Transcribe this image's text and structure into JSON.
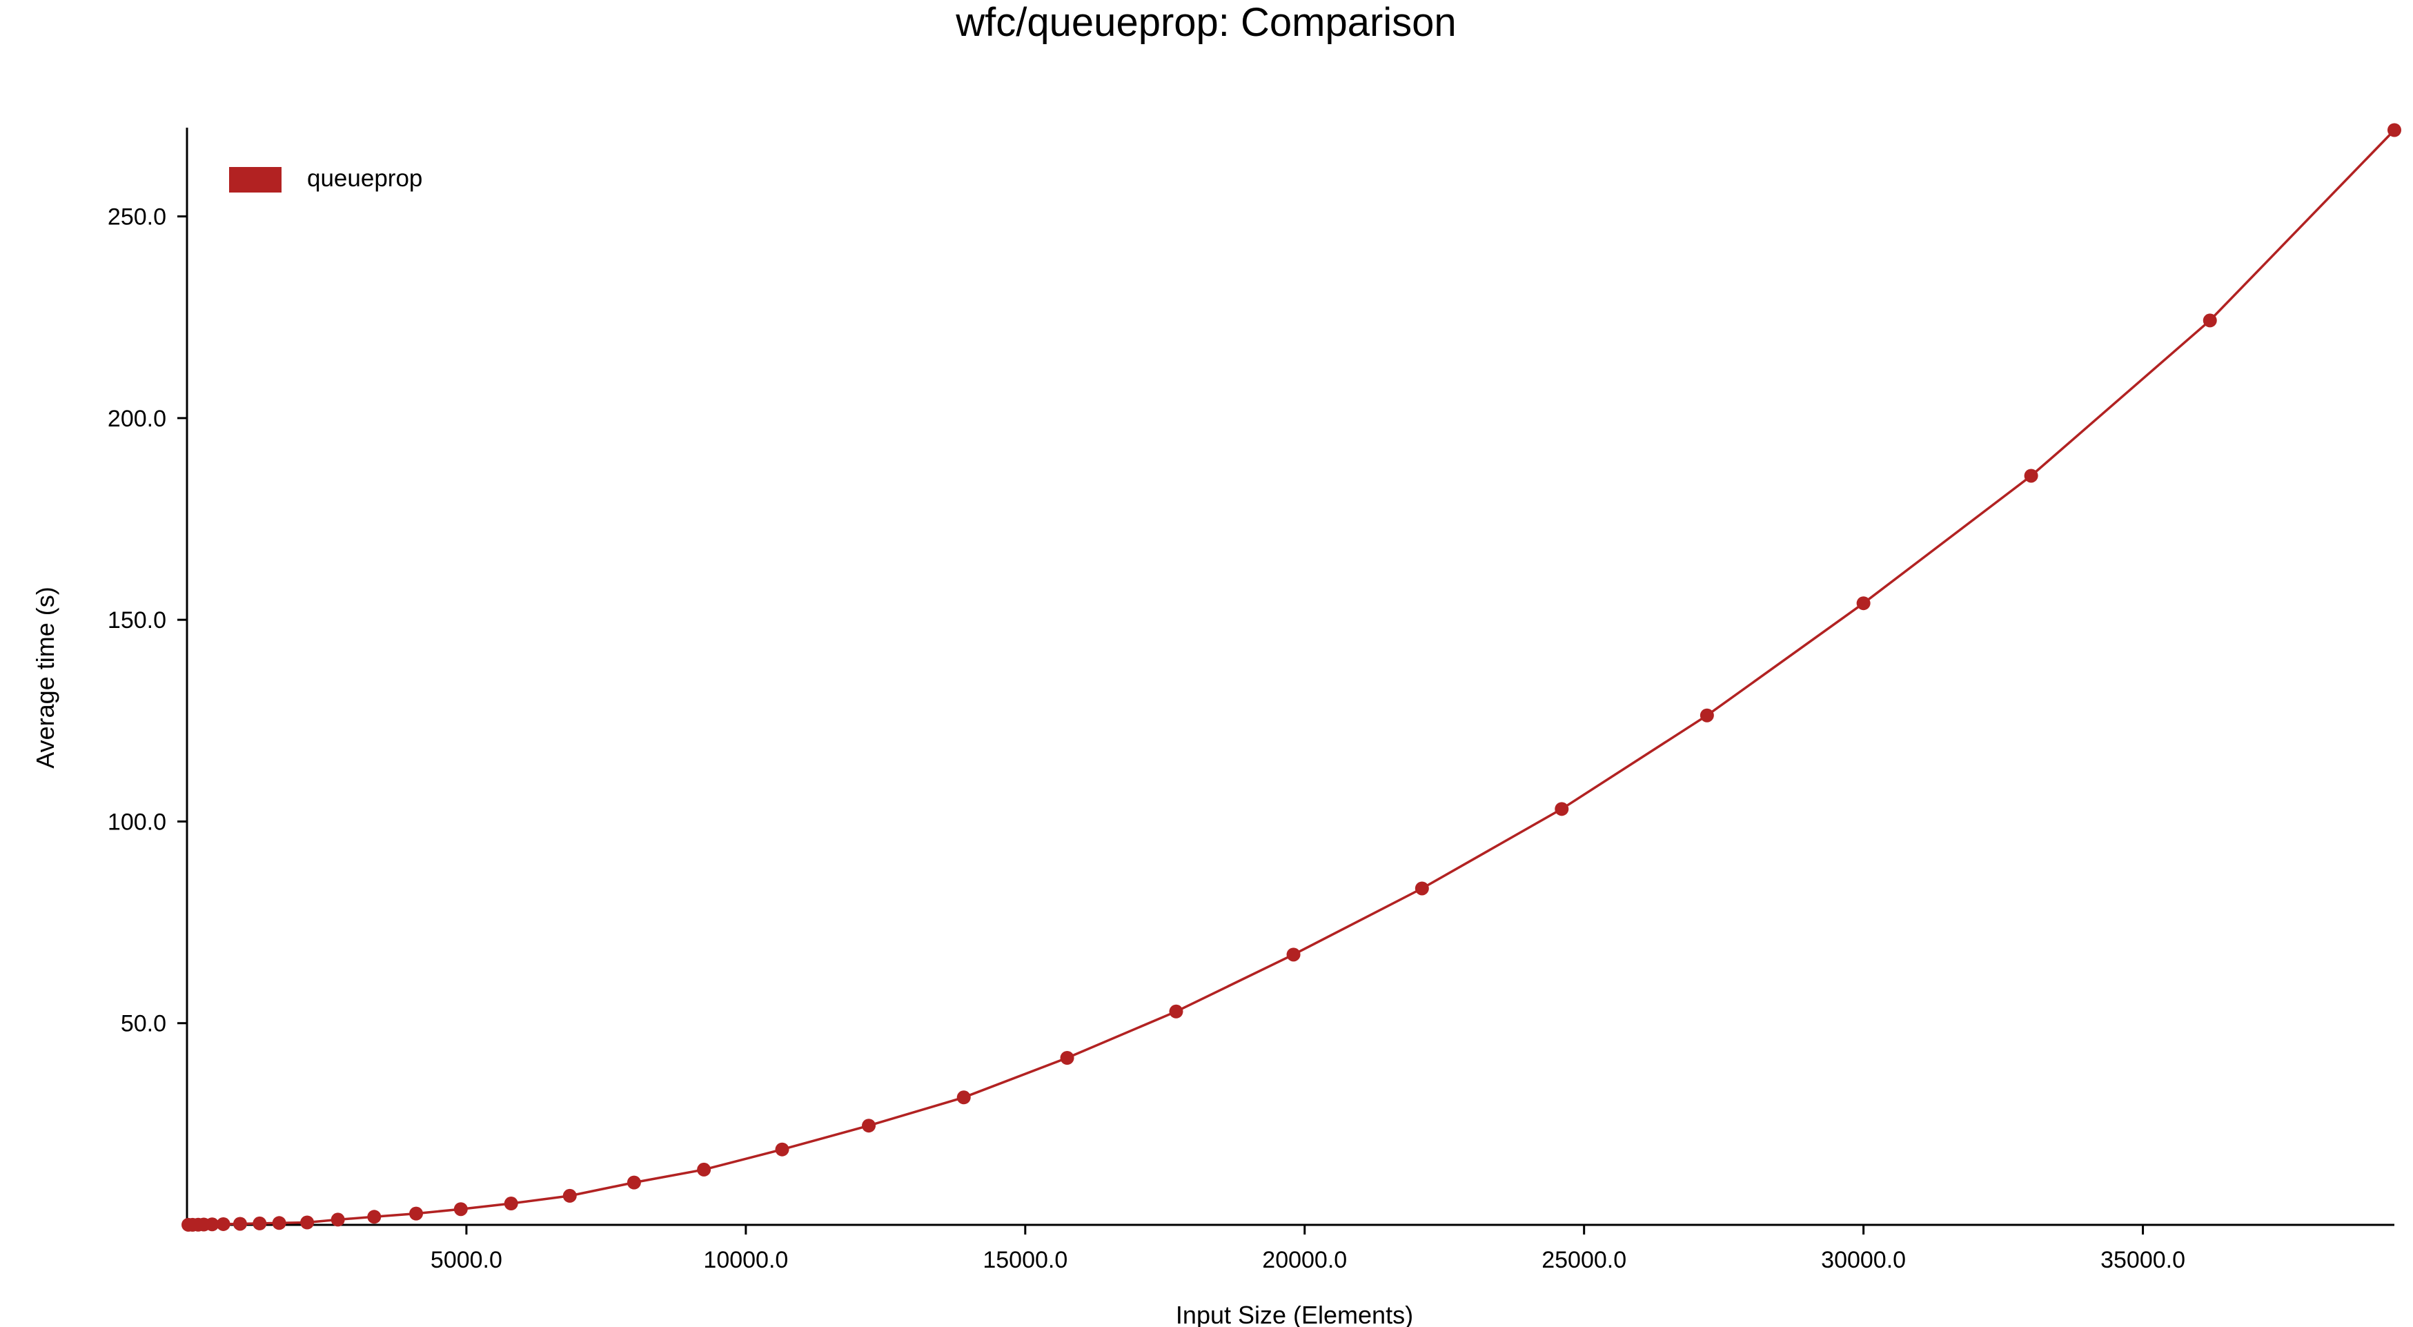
{
  "chart_data": {
    "type": "line",
    "title": "wfc/queueprop: Comparison",
    "xlabel": "Input Size (Elements)",
    "ylabel": "Average time (s)",
    "xlim": [
      0,
      39500
    ],
    "ylim": [
      0,
      272
    ],
    "xticks": [
      5000,
      10000,
      15000,
      20000,
      25000,
      30000,
      35000
    ],
    "xtick_labels": [
      "5000.0",
      "10000.0",
      "15000.0",
      "20000.0",
      "25000.0",
      "30000.0",
      "35000.0"
    ],
    "yticks": [
      50,
      100,
      150,
      200,
      250
    ],
    "ytick_labels": [
      "50.0",
      "100.0",
      "150.0",
      "200.0",
      "250.0"
    ],
    "grid": false,
    "legend_position": "top-left",
    "series": [
      {
        "name": "queueprop",
        "color": "#b22222",
        "x": [
          25,
          100,
          200,
          300,
          450,
          650,
          950,
          1300,
          1650,
          2150,
          2700,
          3350,
          4100,
          4900,
          5800,
          6850,
          8000,
          9250,
          10650,
          12200,
          13900,
          15750,
          17700,
          19800,
          22100,
          24600,
          27200,
          30000,
          33000,
          36200,
          39500
        ],
        "y": [
          0.02,
          0.03,
          0.05,
          0.08,
          0.12,
          0.18,
          0.26,
          0.36,
          0.46,
          0.6,
          1.3,
          2.0,
          2.8,
          3.9,
          5.3,
          7.2,
          10.5,
          13.7,
          18.7,
          24.6,
          31.6,
          41.4,
          52.9,
          67.0,
          83.4,
          103.1,
          126.3,
          154.1,
          185.7,
          224.2,
          271.4
        ]
      }
    ]
  }
}
